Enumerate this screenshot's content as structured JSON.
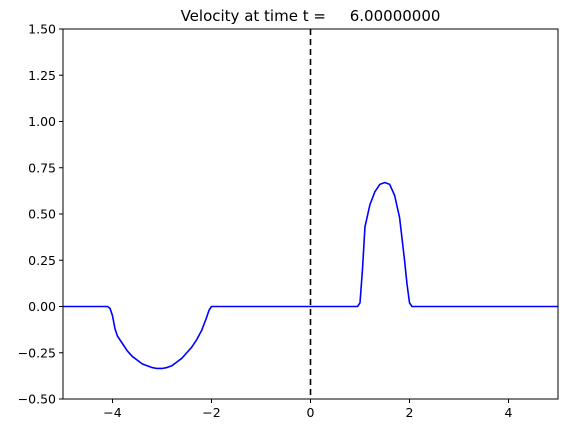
{
  "chart_data": {
    "type": "line",
    "title": "Velocity at time t =     6.00000000",
    "xlabel": "",
    "ylabel": "",
    "xlim": [
      -5,
      5
    ],
    "ylim": [
      -0.5,
      1.5
    ],
    "grid": false,
    "x_ticks": [
      -4,
      -2,
      0,
      2,
      4
    ],
    "x_tick_labels": [
      "−4",
      "−2",
      "0",
      "2",
      "4"
    ],
    "y_ticks": [
      -0.5,
      -0.25,
      0.0,
      0.25,
      0.5,
      0.75,
      1.0,
      1.25,
      1.5
    ],
    "y_tick_labels": [
      "−0.50",
      "−0.25",
      "0.00",
      "0.25",
      "0.50",
      "0.75",
      "1.00",
      "1.25",
      "1.50"
    ],
    "series": [
      {
        "color": "#0000ff",
        "x": [
          -5,
          -4.1,
          -4.05,
          -4.0,
          -3.95,
          -3.9,
          -3.8,
          -3.7,
          -3.6,
          -3.5,
          -3.4,
          -3.3,
          -3.2,
          -3.1,
          -3.0,
          -2.9,
          -2.8,
          -2.7,
          -2.6,
          -2.5,
          -2.4,
          -2.3,
          -2.2,
          -2.1,
          -2.05,
          -2.0,
          -1.95,
          -1.9,
          0.95,
          1.0,
          1.05,
          1.1,
          1.2,
          1.3,
          1.4,
          1.5,
          1.6,
          1.7,
          1.8,
          1.9,
          1.95,
          2.0,
          2.05,
          2.1,
          5
        ],
        "y": [
          0,
          0,
          -0.01,
          -0.05,
          -0.12,
          -0.16,
          -0.2,
          -0.24,
          -0.27,
          -0.29,
          -0.31,
          -0.32,
          -0.33,
          -0.335,
          -0.335,
          -0.33,
          -0.32,
          -0.3,
          -0.28,
          -0.25,
          -0.22,
          -0.18,
          -0.13,
          -0.06,
          -0.02,
          0,
          0,
          0,
          0,
          0.02,
          0.2,
          0.43,
          0.55,
          0.62,
          0.66,
          0.67,
          0.66,
          0.6,
          0.48,
          0.25,
          0.12,
          0.02,
          0,
          0,
          0
        ]
      }
    ],
    "vertical_lines": [
      {
        "x": 0,
        "style": "dashed",
        "color": "#000000"
      }
    ]
  }
}
